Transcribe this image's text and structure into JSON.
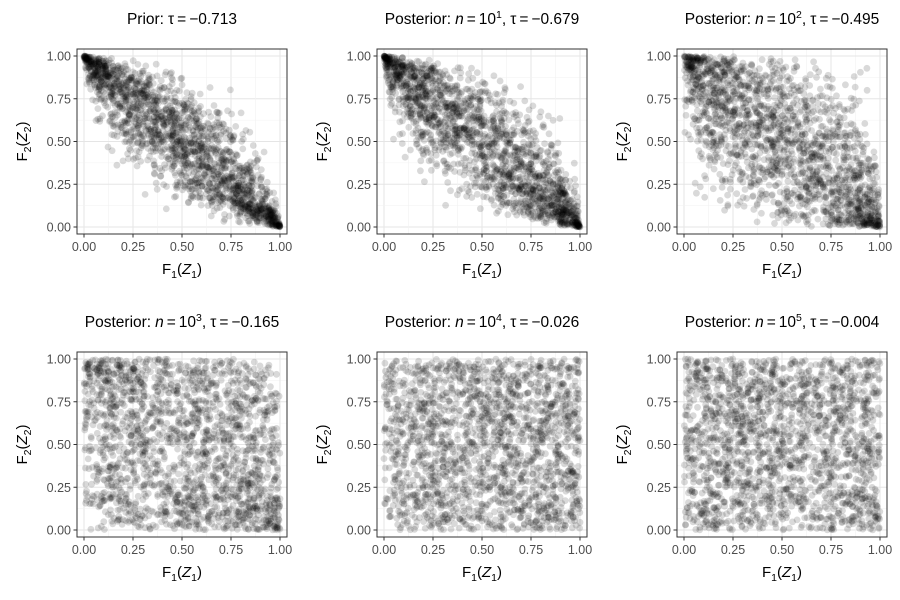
{
  "chart_data": [
    {
      "type": "scatter",
      "title": {
        "prefix": "Prior:",
        "italic": "",
        "eq1": "",
        "base": "",
        "sup": "",
        "sep": "",
        "tau_symbol": "τ",
        "eq2": "=",
        "tau_value": "−0.713"
      },
      "xlabel": {
        "f": "F",
        "fsub": "1",
        "z": "Z",
        "zsub": "1"
      },
      "ylabel": {
        "f": "F",
        "fsub": "2",
        "z": "Z",
        "zsub": "2"
      },
      "kendall_tau": -0.713,
      "xlim": [
        0,
        1
      ],
      "ylim": [
        0,
        1
      ],
      "x_ticks": [
        "0.00",
        "0.25",
        "0.50",
        "0.75",
        "1.00"
      ],
      "y_ticks": [
        "0.00",
        "0.25",
        "0.50",
        "0.75",
        "1.00"
      ],
      "grid": true,
      "point_color": "#000000",
      "point_opacity": 0.15
    },
    {
      "type": "scatter",
      "title": {
        "prefix": "Posterior:",
        "italic": "n",
        "eq1": "=",
        "base": "10",
        "sup": "1",
        "sep": ",",
        "tau_symbol": "τ",
        "eq2": "=",
        "tau_value": "−0.679"
      },
      "xlabel": {
        "f": "F",
        "fsub": "1",
        "z": "Z",
        "zsub": "1"
      },
      "ylabel": {
        "f": "F",
        "fsub": "2",
        "z": "Z",
        "zsub": "2"
      },
      "kendall_tau": -0.679,
      "xlim": [
        0,
        1
      ],
      "ylim": [
        0,
        1
      ],
      "x_ticks": [
        "0.00",
        "0.25",
        "0.50",
        "0.75",
        "1.00"
      ],
      "y_ticks": [
        "0.00",
        "0.25",
        "0.50",
        "0.75",
        "1.00"
      ],
      "grid": true,
      "point_color": "#000000",
      "point_opacity": 0.15
    },
    {
      "type": "scatter",
      "title": {
        "prefix": "Posterior:",
        "italic": "n",
        "eq1": "=",
        "base": "10",
        "sup": "2",
        "sep": ",",
        "tau_symbol": "τ",
        "eq2": "=",
        "tau_value": "−0.495"
      },
      "xlabel": {
        "f": "F",
        "fsub": "1",
        "z": "Z",
        "zsub": "1"
      },
      "ylabel": {
        "f": "F",
        "fsub": "2",
        "z": "Z",
        "zsub": "2"
      },
      "kendall_tau": -0.495,
      "xlim": [
        0,
        1
      ],
      "ylim": [
        0,
        1
      ],
      "x_ticks": [
        "0.00",
        "0.25",
        "0.50",
        "0.75",
        "1.00"
      ],
      "y_ticks": [
        "0.00",
        "0.25",
        "0.50",
        "0.75",
        "1.00"
      ],
      "grid": true,
      "point_color": "#000000",
      "point_opacity": 0.15
    },
    {
      "type": "scatter",
      "title": {
        "prefix": "Posterior:",
        "italic": "n",
        "eq1": "=",
        "base": "10",
        "sup": "3",
        "sep": ",",
        "tau_symbol": "τ",
        "eq2": "=",
        "tau_value": "−0.165"
      },
      "xlabel": {
        "f": "F",
        "fsub": "1",
        "z": "Z",
        "zsub": "1"
      },
      "ylabel": {
        "f": "F",
        "fsub": "2",
        "z": "Z",
        "zsub": "2"
      },
      "kendall_tau": -0.165,
      "xlim": [
        0,
        1
      ],
      "ylim": [
        0,
        1
      ],
      "x_ticks": [
        "0.00",
        "0.25",
        "0.50",
        "0.75",
        "1.00"
      ],
      "y_ticks": [
        "0.00",
        "0.25",
        "0.50",
        "0.75",
        "1.00"
      ],
      "grid": true,
      "point_color": "#000000",
      "point_opacity": 0.15
    },
    {
      "type": "scatter",
      "title": {
        "prefix": "Posterior:",
        "italic": "n",
        "eq1": "=",
        "base": "10",
        "sup": "4",
        "sep": ",",
        "tau_symbol": "τ",
        "eq2": "=",
        "tau_value": "−0.026"
      },
      "xlabel": {
        "f": "F",
        "fsub": "1",
        "z": "Z",
        "zsub": "1"
      },
      "ylabel": {
        "f": "F",
        "fsub": "2",
        "z": "Z",
        "zsub": "2"
      },
      "kendall_tau": -0.026,
      "xlim": [
        0,
        1
      ],
      "ylim": [
        0,
        1
      ],
      "x_ticks": [
        "0.00",
        "0.25",
        "0.50",
        "0.75",
        "1.00"
      ],
      "y_ticks": [
        "0.00",
        "0.25",
        "0.50",
        "0.75",
        "1.00"
      ],
      "grid": true,
      "point_color": "#000000",
      "point_opacity": 0.15
    },
    {
      "type": "scatter",
      "title": {
        "prefix": "Posterior:",
        "italic": "n",
        "eq1": "=",
        "base": "10",
        "sup": "5",
        "sep": ",",
        "tau_symbol": "τ",
        "eq2": "=",
        "tau_value": "−0.004"
      },
      "xlabel": {
        "f": "F",
        "fsub": "1",
        "z": "Z",
        "zsub": "1"
      },
      "ylabel": {
        "f": "F",
        "fsub": "2",
        "z": "Z",
        "zsub": "2"
      },
      "kendall_tau": -0.004,
      "xlim": [
        0,
        1
      ],
      "ylim": [
        0,
        1
      ],
      "x_ticks": [
        "0.00",
        "0.25",
        "0.50",
        "0.75",
        "1.00"
      ],
      "y_ticks": [
        "0.00",
        "0.25",
        "0.50",
        "0.75",
        "1.00"
      ],
      "grid": true,
      "point_color": "#000000",
      "point_opacity": 0.15
    }
  ]
}
